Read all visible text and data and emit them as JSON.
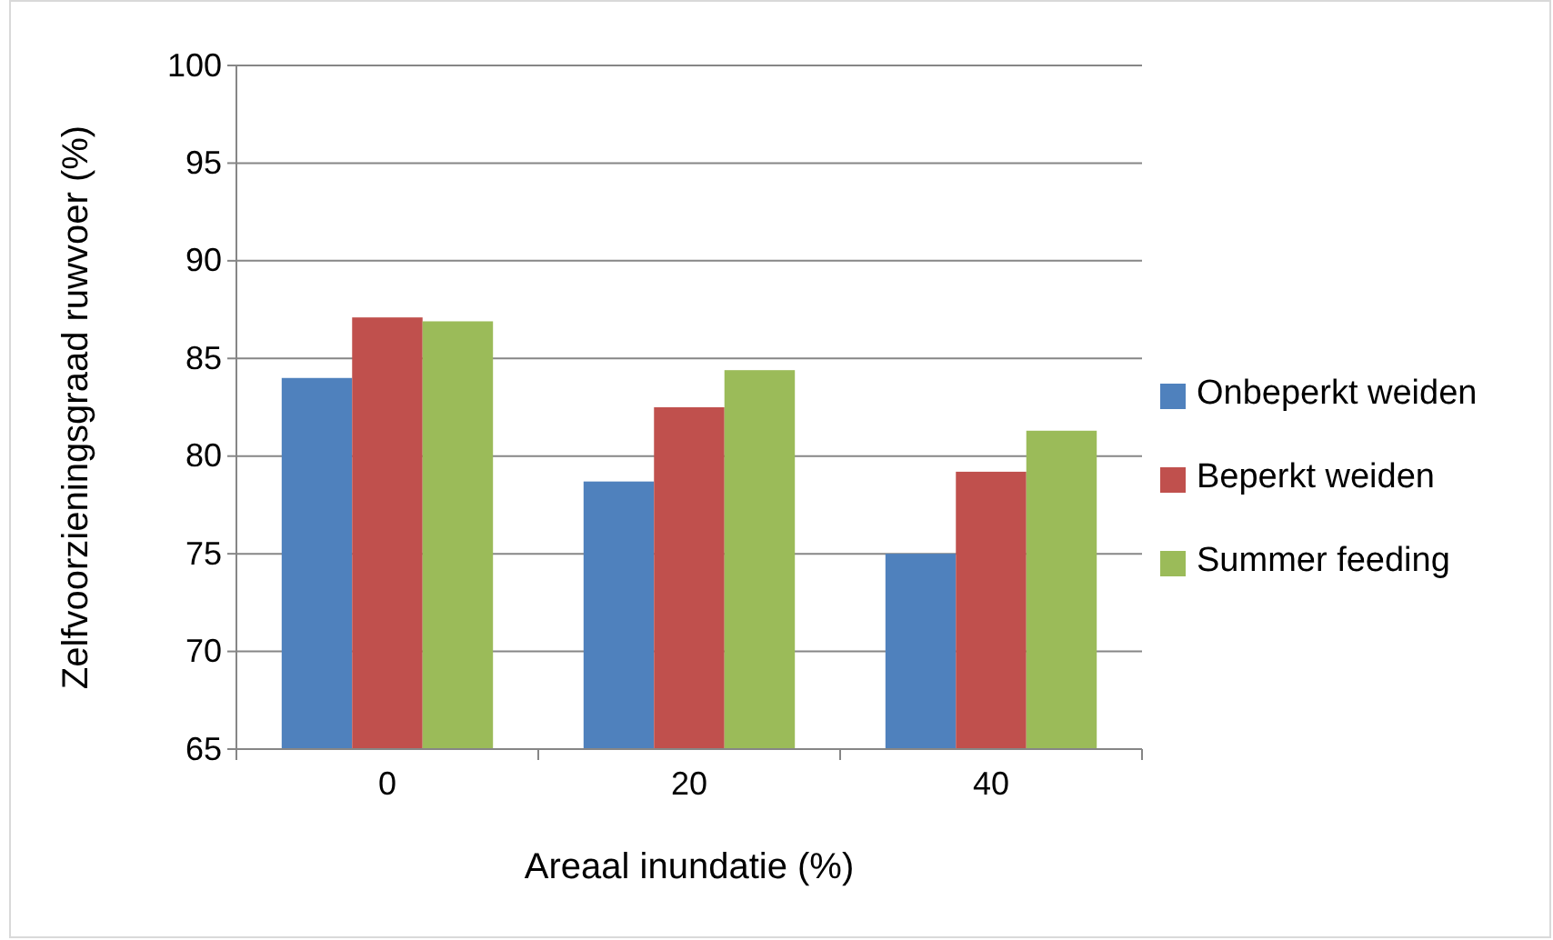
{
  "chart_data": {
    "type": "bar",
    "xlabel": "Areaal inundatie (%)",
    "ylabel": "Zelfvoorzieningsgraad  ruwvoer  (%)",
    "categories": [
      "0",
      "20",
      "40"
    ],
    "series": [
      {
        "name": "Onbeperkt weiden",
        "color": "#4f81bd",
        "values": [
          84.0,
          78.7,
          75.0
        ]
      },
      {
        "name": "Beperkt weiden",
        "color": "#c0504d",
        "values": [
          87.1,
          82.5,
          79.2
        ]
      },
      {
        "name": "Summer feeding",
        "color": "#9bbb59",
        "values": [
          86.9,
          84.4,
          81.3
        ]
      }
    ],
    "ylim": [
      65,
      100
    ],
    "yticks": [
      65,
      70,
      75,
      80,
      85,
      90,
      95,
      100
    ],
    "grid": "y",
    "legend": "right"
  }
}
